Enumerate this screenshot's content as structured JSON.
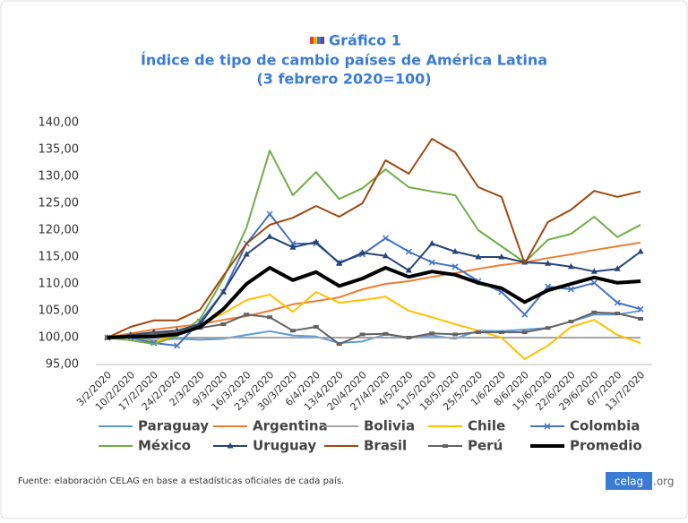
{
  "chart_data": {
    "type": "line",
    "label": "Gráfico 1",
    "title": "Índice de tipo de cambio países de América Latina",
    "subtitle": "(3 febrero 2020=100)",
    "categories": [
      "3/2/2020",
      "10/2/2020",
      "17/2/2020",
      "24/2/2020",
      "2/3/2020",
      "9/3/2020",
      "16/3/2020",
      "23/3/2020",
      "30/3/2020",
      "6/4/2020",
      "13/4/2020",
      "20/4/2020",
      "27/4/2020",
      "4/5/2020",
      "11/5/2020",
      "18/5/2020",
      "25/5/2020",
      "1/6/2020",
      "8/6/2020",
      "15/6/2020",
      "22/6/2020",
      "29/6/2020",
      "6/7/2020",
      "13/7/2020"
    ],
    "ylim": [
      95,
      140
    ],
    "yticks": [
      {
        "value": 95,
        "label": "95,00"
      },
      {
        "value": 100,
        "label": "100,00"
      },
      {
        "value": 105,
        "label": "105,00"
      },
      {
        "value": 110,
        "label": "110,00"
      },
      {
        "value": 115,
        "label": "115,00"
      },
      {
        "value": 120,
        "label": "120,00"
      },
      {
        "value": 125,
        "label": "125,00"
      },
      {
        "value": 130,
        "label": "130,00"
      },
      {
        "value": 135,
        "label": "135,00"
      },
      {
        "value": 140,
        "label": "140,00"
      }
    ],
    "grid": false,
    "series": [
      {
        "name": "Paraguay",
        "color": "#5b9bd5",
        "values": [
          100,
          100,
          99.5,
          99.8,
          99.6,
          99.8,
          100.5,
          101.2,
          100.4,
          100.2,
          99,
          99.3,
          100.6,
          100,
          100.4,
          99.8,
          101.3,
          101.2,
          101.5,
          101.8,
          103,
          104.3,
          104.3,
          105
        ]
      },
      {
        "name": "Argentina",
        "color": "#ed7d31",
        "values": [
          100,
          100.8,
          101.5,
          102,
          102.5,
          103.3,
          104,
          105,
          106.2,
          106.8,
          107.5,
          109,
          110,
          110.5,
          111.3,
          112,
          112.8,
          113.5,
          114,
          114.8,
          115.5,
          116.3,
          117,
          117.7
        ]
      },
      {
        "name": "Bolivia",
        "color": "#a5a5a5",
        "values": [
          100,
          100,
          100,
          100,
          100,
          100,
          100,
          100,
          100,
          100,
          100,
          100,
          100,
          100,
          100,
          100,
          100,
          100,
          100,
          100,
          100,
          100,
          100,
          100
        ]
      },
      {
        "name": "Chile",
        "color": "#ffc000",
        "values": [
          100,
          100,
          99.2,
          100.5,
          102.5,
          104.5,
          107,
          108,
          104.8,
          108.5,
          106.5,
          107,
          107.6,
          105,
          103.8,
          102.5,
          101.3,
          100,
          96,
          98.5,
          102,
          103.3,
          100.5,
          99
        ]
      },
      {
        "name": "Colombia",
        "color": "#4472c4",
        "marker": "x",
        "values": [
          100,
          100,
          99,
          98.5,
          103,
          108.5,
          117.5,
          123,
          117.5,
          117.5,
          114,
          115.5,
          118.5,
          116,
          114,
          113.2,
          110.5,
          108.5,
          104.3,
          109.5,
          109,
          110.2,
          106.5,
          105.3
        ]
      },
      {
        "name": "México",
        "color": "#70ad47",
        "values": [
          100,
          99.5,
          98.8,
          100.3,
          103.5,
          111,
          120.5,
          134.8,
          126.5,
          130.8,
          125.8,
          127.8,
          131.3,
          128,
          127.2,
          126.5,
          120,
          117,
          114,
          118.2,
          119.3,
          122.5,
          118.7,
          121
        ]
      },
      {
        "name": "Uruguay",
        "color": "#264478",
        "marker": "triangle",
        "values": [
          100,
          100.5,
          101,
          101.3,
          102.5,
          108.5,
          115.5,
          118.8,
          116.8,
          117.8,
          113.8,
          115.8,
          115.2,
          112.5,
          117.5,
          116,
          115,
          115,
          114,
          113.8,
          113.2,
          112.3,
          112.8,
          116
        ]
      },
      {
        "name": "Brasil",
        "color": "#9e480e",
        "values": [
          100,
          102,
          103.2,
          103.2,
          105.2,
          111.5,
          117.5,
          121,
          122.3,
          124.5,
          122.5,
          125,
          133,
          130.5,
          137,
          134.5,
          128,
          126.2,
          113.8,
          121.5,
          123.8,
          127.3,
          126.2,
          127.2
        ]
      },
      {
        "name": "Perú",
        "color": "#636363",
        "marker": "square",
        "values": [
          100,
          100.3,
          100.7,
          101,
          101.8,
          102.5,
          104.3,
          103.8,
          101.3,
          102,
          98.8,
          100.6,
          100.7,
          100,
          100.8,
          100.6,
          101,
          101,
          101,
          101.8,
          103,
          104.7,
          104.5,
          103.5
        ]
      },
      {
        "name": "Promedio",
        "color": "#000000",
        "emphasis": true,
        "values": [
          100,
          100.2,
          100.2,
          100.6,
          102,
          105.3,
          110,
          113,
          110.7,
          112.2,
          109.6,
          111,
          113,
          111.3,
          112.3,
          111.7,
          110.2,
          109.2,
          106.6,
          108.8,
          110,
          111.2,
          110.2,
          110.5
        ]
      }
    ]
  },
  "source": "Fuente: elaboración CELAG en base a estadísticas oficiales de cada país.",
  "logo": {
    "name": "celag",
    "suffix": ".org"
  }
}
